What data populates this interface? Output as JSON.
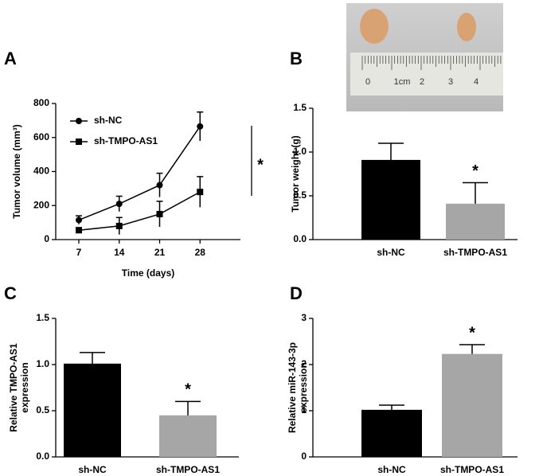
{
  "photo": {
    "ruler_labels": [
      "0",
      "1cm",
      "2",
      "3",
      "4"
    ]
  },
  "chart_data": [
    {
      "type": "line",
      "panel": "A",
      "xlabel": "Time (days)",
      "ylabel": "Tumor volume (mm³)",
      "x": [
        7,
        14,
        21,
        28
      ],
      "xlim": [
        3,
        35
      ],
      "xticks": [
        7,
        14,
        21,
        28
      ],
      "ylim": [
        0,
        800
      ],
      "yticks": [
        0,
        200,
        400,
        600,
        800
      ],
      "series": [
        {
          "name": "sh-NC",
          "color": "#000000",
          "marker": "circle",
          "values": [
            115,
            210,
            320,
            665
          ],
          "errors": [
            25,
            45,
            70,
            85
          ]
        },
        {
          "name": "sh-TMPO-AS1",
          "color": "#000000",
          "marker": "square",
          "values": [
            55,
            80,
            150,
            280
          ],
          "errors": [
            15,
            50,
            75,
            90
          ]
        }
      ],
      "annotation": "*"
    },
    {
      "type": "bar",
      "panel": "B",
      "ylabel": "Tumor weight (g)",
      "categories": [
        "sh-NC",
        "sh-TMPO-AS1"
      ],
      "values": [
        0.91,
        0.41
      ],
      "errors": [
        0.19,
        0.24
      ],
      "colors": [
        "#000000",
        "#a6a6a6"
      ],
      "ylim": [
        0,
        1.5
      ],
      "yticks": [
        {
          "value": 0,
          "label": "0.0"
        },
        0.5,
        {
          "value": 1,
          "label": "1.0"
        },
        1.5
      ],
      "annotation": "*"
    },
    {
      "type": "bar",
      "panel": "C",
      "ylabel": [
        "Relative TMPO-AS1",
        "expression"
      ],
      "categories": [
        "sh-NC",
        "sh-TMPO-AS1"
      ],
      "values": [
        1.01,
        0.45
      ],
      "errors": [
        0.12,
        0.15
      ],
      "colors": [
        "#000000",
        "#a6a6a6"
      ],
      "ylim": [
        0,
        1.5
      ],
      "yticks": [
        {
          "value": 0,
          "label": "0.0"
        },
        0.5,
        {
          "value": 1,
          "label": "1.0"
        },
        1.5
      ],
      "annotation": "*"
    },
    {
      "type": "bar",
      "panel": "D",
      "ylabel": [
        "Relative miR-143-3p",
        "expression"
      ],
      "categories": [
        "sh-NC",
        "sh-TMPO-AS1"
      ],
      "values": [
        1.02,
        2.23
      ],
      "errors": [
        0.1,
        0.2
      ],
      "colors": [
        "#000000",
        "#a6a6a6"
      ],
      "ylim": [
        0,
        3
      ],
      "yticks": [
        0,
        1,
        2,
        3
      ],
      "annotation": "*"
    }
  ]
}
